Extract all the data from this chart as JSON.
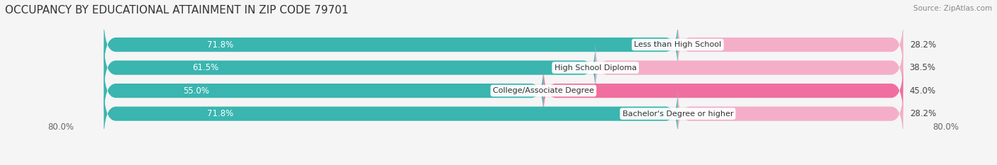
{
  "title": "OCCUPANCY BY EDUCATIONAL ATTAINMENT IN ZIP CODE 79701",
  "source": "Source: ZipAtlas.com",
  "categories": [
    "Less than High School",
    "High School Diploma",
    "College/Associate Degree",
    "Bachelor's Degree or higher"
  ],
  "owner_pct": [
    71.8,
    61.5,
    55.0,
    71.8
  ],
  "renter_pct": [
    28.2,
    38.5,
    45.0,
    28.2
  ],
  "owner_color": "#3ab5b0",
  "renter_color_light": "#f5aec8",
  "renter_color_dark": "#f06fa0",
  "renter_colors": [
    "#f5aec8",
    "#f5aec8",
    "#f06fa0",
    "#f5aec8"
  ],
  "bar_bg_color": "#ebebeb",
  "xlim_left": 0.0,
  "xlim_right": 100.0,
  "x_left_label": "80.0%",
  "x_right_label": "80.0%",
  "title_fontsize": 11,
  "source_fontsize": 8,
  "bar_height": 0.62,
  "label_fontsize": 8.5,
  "tick_fontsize": 8.5,
  "background_color": "#f5f5f5",
  "row_bg_color": "#efefef"
}
